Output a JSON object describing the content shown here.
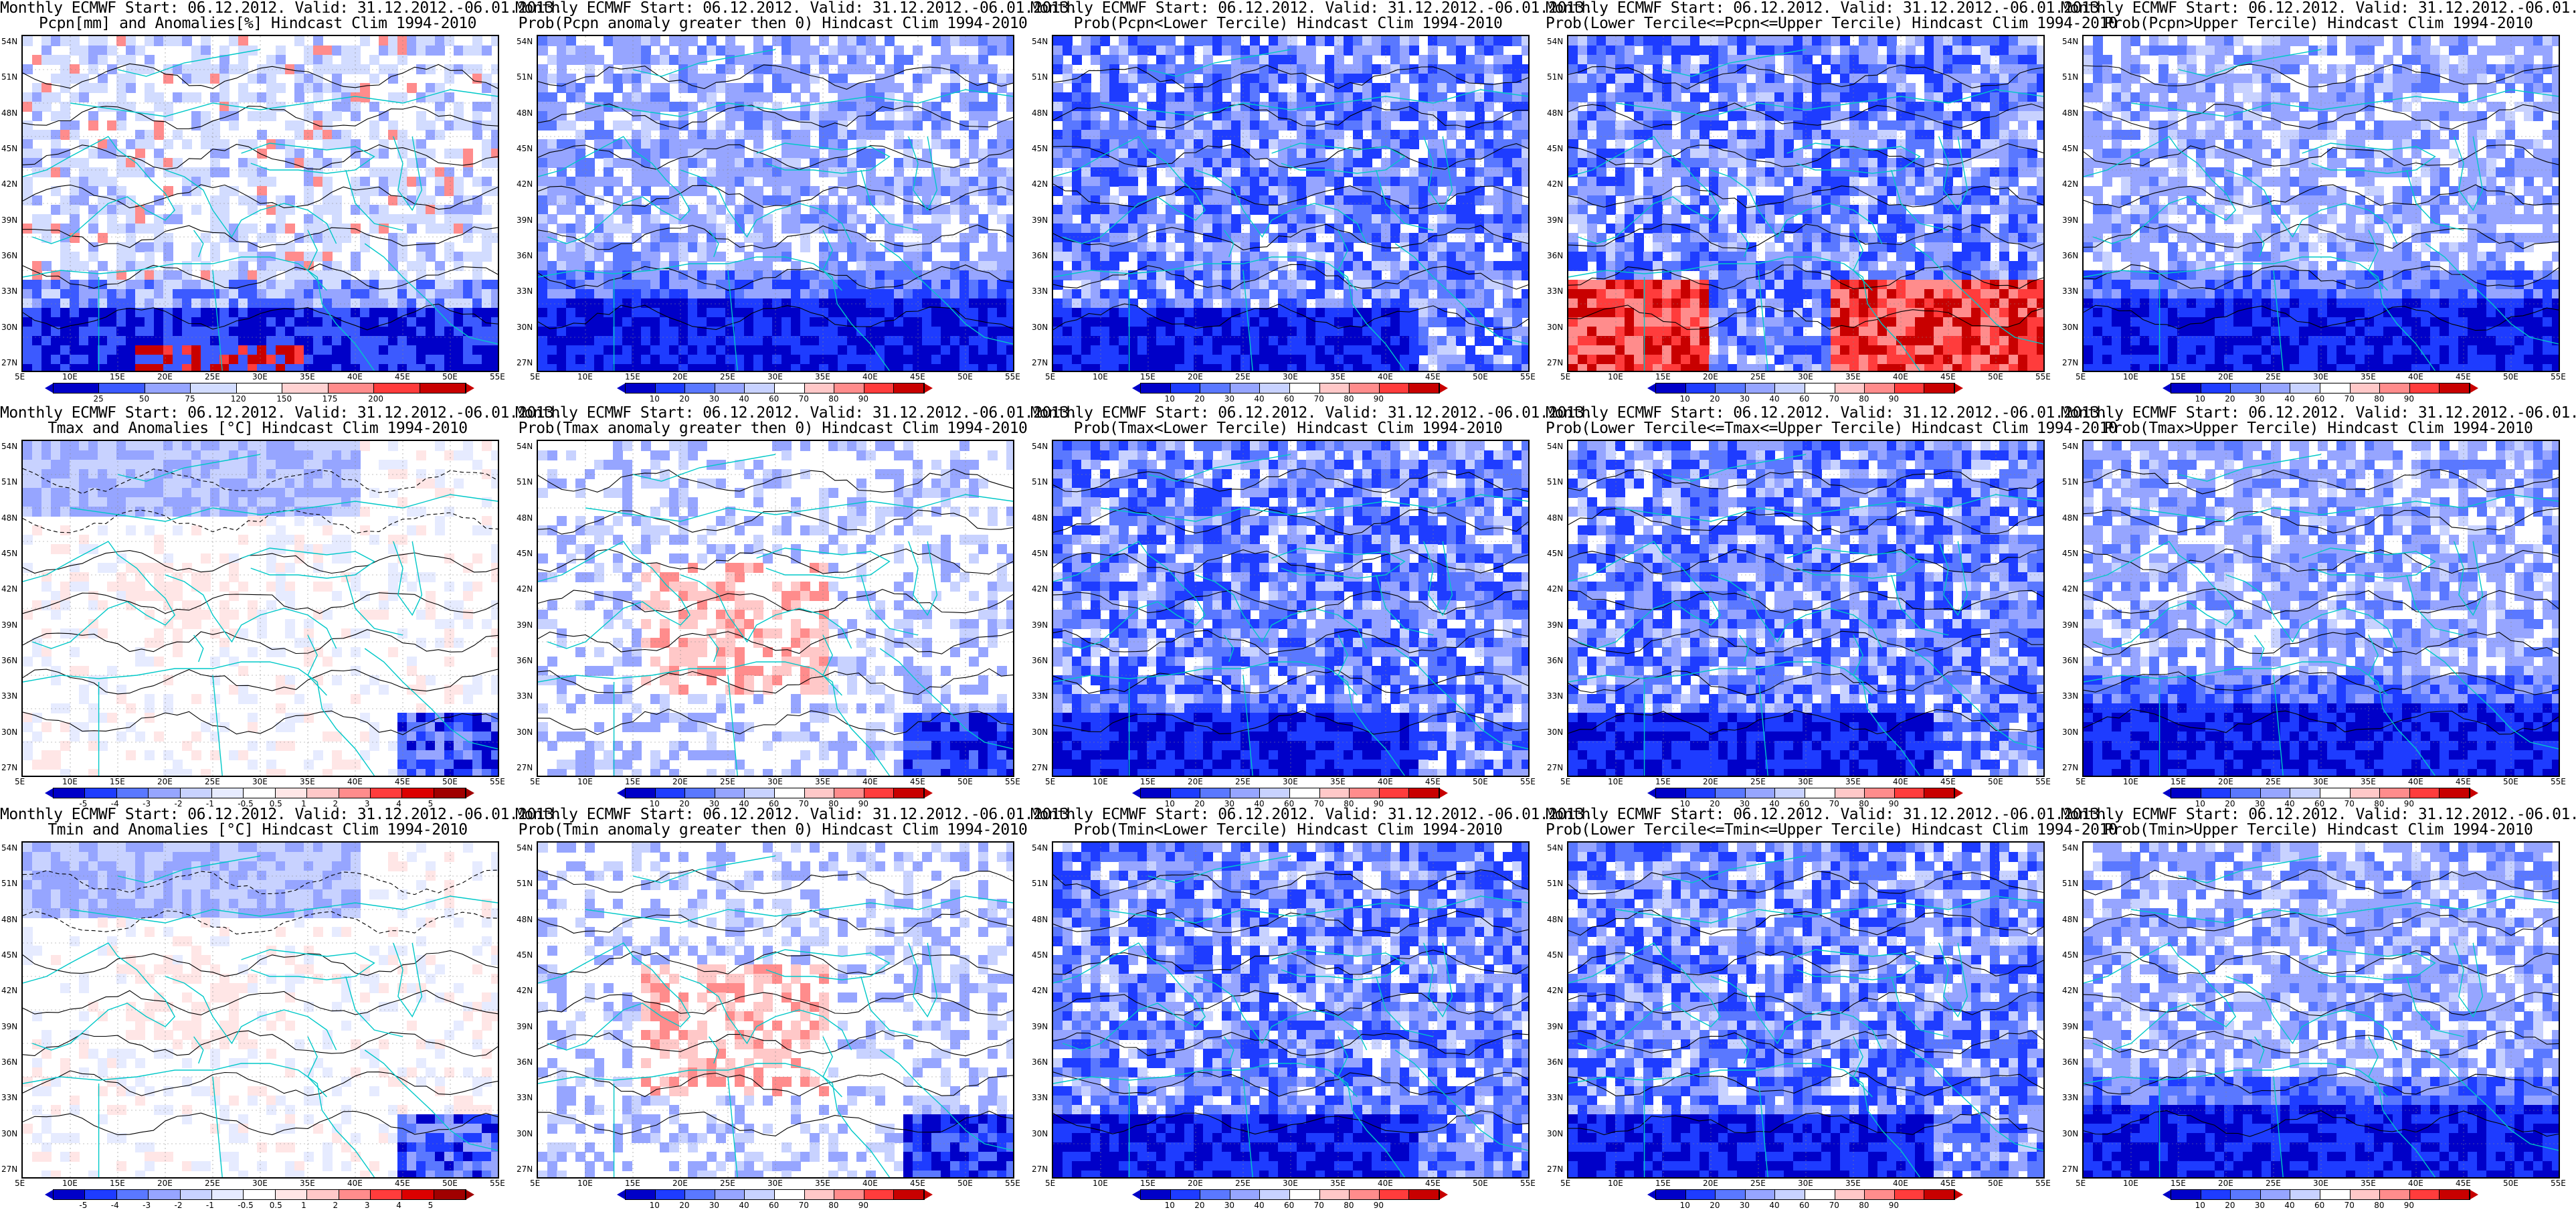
{
  "title_line1": "Monthly ECMWF Start: 06.12.2012. Valid: 31.12.2012.-06.01.2013.",
  "panels": [
    {
      "row": 0,
      "col": 0,
      "t2": "Pcpn[mm] and Anomalies[%] Hindcast Clim 1994-2010",
      "scale": "anom_pcpn",
      "tone": "pcpn_anom"
    },
    {
      "row": 0,
      "col": 1,
      "t2": "Prob(Pcpn anomaly greater then 0) Hindcast Clim 1994-2010",
      "scale": "prob",
      "tone": "prob_low"
    },
    {
      "row": 0,
      "col": 2,
      "t2": "Prob(Pcpn<Lower Tercile) Hindcast Clim 1994-2010",
      "scale": "prob",
      "tone": "prob_mix"
    },
    {
      "row": 0,
      "col": 3,
      "t2": "Prob(Lower Tercile<=Pcpn<=Upper Tercile) Hindcast Clim 1994-2010",
      "scale": "prob",
      "tone": "prob_redsouth"
    },
    {
      "row": 0,
      "col": 4,
      "t2": "Prob(Pcpn>Upper Tercile) Hindcast Clim 1994-2010",
      "scale": "prob",
      "tone": "prob_low"
    },
    {
      "row": 1,
      "col": 0,
      "t2": "Tmax and Anomalies [°C] Hindcast Clim 1994-2010",
      "scale": "anom_t",
      "tone": "t_anom"
    },
    {
      "row": 1,
      "col": 1,
      "t2": "Prob(Tmax anomaly greater then 0) Hindcast Clim 1994-2010",
      "scale": "prob",
      "tone": "prob_warm"
    },
    {
      "row": 1,
      "col": 2,
      "t2": "Prob(Tmax<Lower Tercile) Hindcast Clim 1994-2010",
      "scale": "prob",
      "tone": "prob_mix"
    },
    {
      "row": 1,
      "col": 3,
      "t2": "Prob(Lower Tercile<=Tmax<=Upper Tercile) Hindcast Clim 1994-2010",
      "scale": "prob",
      "tone": "prob_mix"
    },
    {
      "row": 1,
      "col": 4,
      "t2": "Prob(Tmax>Upper Tercile) Hindcast Clim 1994-2010",
      "scale": "prob",
      "tone": "prob_low"
    },
    {
      "row": 2,
      "col": 0,
      "t2": "Tmin and Anomalies [°C] Hindcast Clim 1994-2010",
      "scale": "anom_t",
      "tone": "t_anom"
    },
    {
      "row": 2,
      "col": 1,
      "t2": "Prob(Tmin anomaly greater then 0) Hindcast Clim 1994-2010",
      "scale": "prob",
      "tone": "prob_warm"
    },
    {
      "row": 2,
      "col": 2,
      "t2": "Prob(Tmin<Lower Tercile) Hindcast Clim 1994-2010",
      "scale": "prob",
      "tone": "prob_mix"
    },
    {
      "row": 2,
      "col": 3,
      "t2": "Prob(Lower Tercile<=Tmin<=Upper Tercile) Hindcast Clim 1994-2010",
      "scale": "prob",
      "tone": "prob_mix"
    },
    {
      "row": 2,
      "col": 4,
      "t2": "Prob(Tmin>Upper Tercile) Hindcast Clim 1994-2010",
      "scale": "prob",
      "tone": "prob_low"
    }
  ],
  "lat_labels": [
    "54N",
    "51N",
    "48N",
    "45N",
    "42N",
    "39N",
    "36N",
    "33N",
    "30N",
    "27N"
  ],
  "lon_labels": [
    "5E",
    "10E",
    "15E",
    "20E",
    "25E",
    "30E",
    "35E",
    "40E",
    "45E",
    "50E",
    "55E"
  ],
  "scales": {
    "prob": {
      "labels": [
        "10",
        "20",
        "30",
        "40",
        "60",
        "70",
        "80",
        "90"
      ],
      "colors": [
        "#0000c8",
        "#1e3cff",
        "#5a78ff",
        "#96a5ff",
        "#c8d2ff",
        "#ffffff",
        "#ffc8c8",
        "#ff8c8c",
        "#ff3c3c",
        "#c80000"
      ]
    },
    "anom_pcpn": {
      "labels": [
        "25",
        "50",
        "75",
        "120",
        "150",
        "175",
        "200"
      ],
      "colors": [
        "#0000c8",
        "#3c5aff",
        "#96a5ff",
        "#d2dcff",
        "#ffffff",
        "#ffd2d2",
        "#ff8c8c",
        "#ff3c3c",
        "#c80000"
      ]
    },
    "anom_t": {
      "labels": [
        "-5",
        "-4",
        "-3",
        "-2",
        "-1",
        "-0.5",
        "0.5",
        "1",
        "2",
        "3",
        "4",
        "5"
      ],
      "colors": [
        "#0000c8",
        "#1e3cff",
        "#5a78ff",
        "#96a5ff",
        "#c8d2ff",
        "#e6ebff",
        "#ffffff",
        "#ffe6e6",
        "#ffc8c8",
        "#ff8c8c",
        "#ff3c3c",
        "#dc0000",
        "#a00000"
      ]
    }
  },
  "colors": {
    "coast": "#00c8c8",
    "contour": "#000000",
    "frame": "#000000"
  }
}
